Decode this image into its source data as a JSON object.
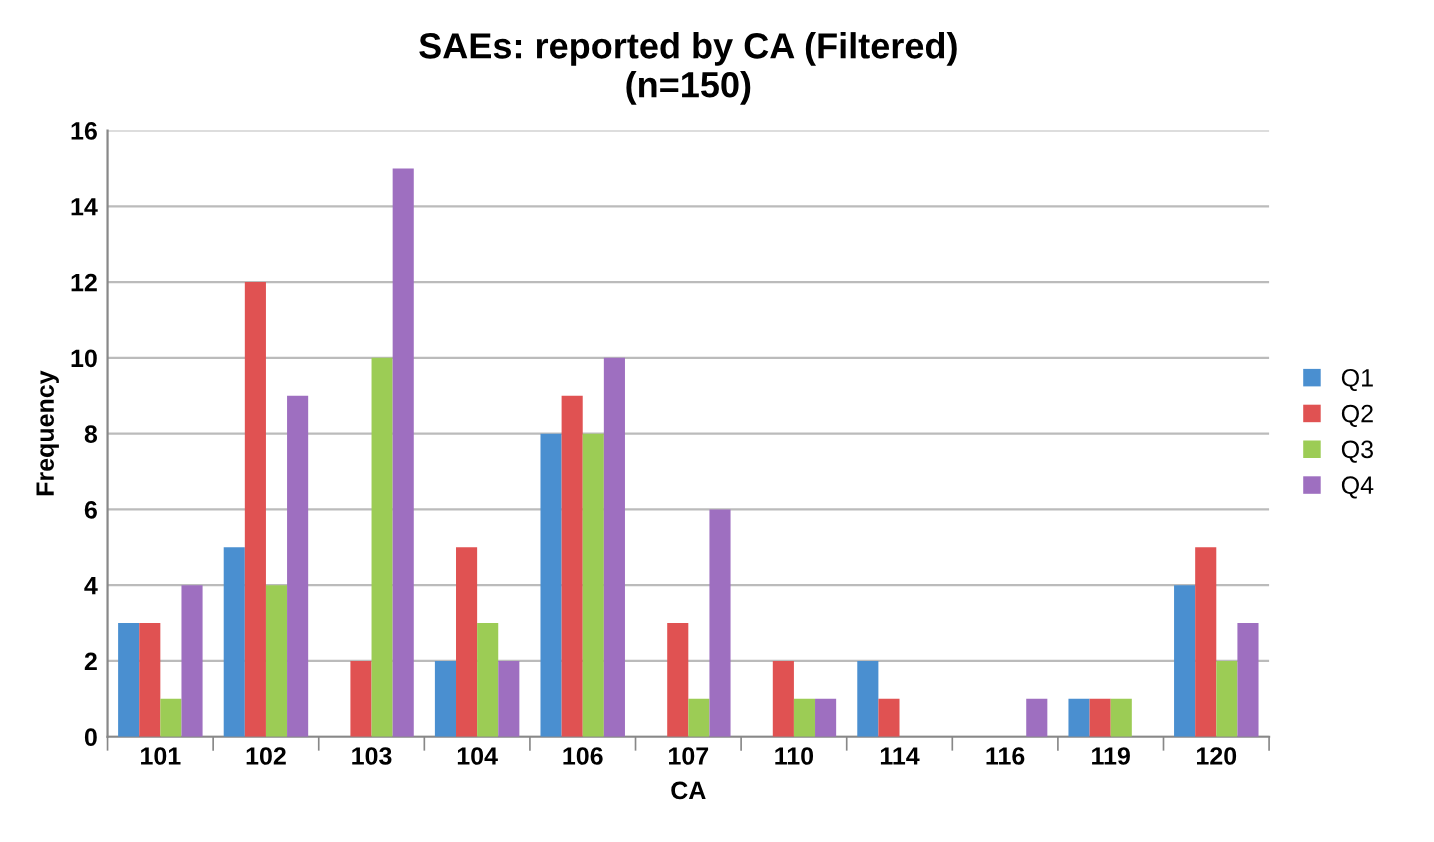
{
  "chart_data": {
    "type": "bar",
    "title": "SAEs: reported by CA (Filtered)\n(n=150)",
    "xlabel": "CA",
    "ylabel": "Frequency",
    "categories": [
      "101",
      "102",
      "103",
      "104",
      "106",
      "107",
      "110",
      "114",
      "116",
      "119",
      "120"
    ],
    "series": [
      {
        "name": "Q1",
        "color": "#4a8fd0",
        "values": [
          3,
          5,
          0,
          2,
          8,
          0,
          0,
          2,
          0,
          1,
          4
        ]
      },
      {
        "name": "Q2",
        "color": "#e05252",
        "values": [
          3,
          12,
          2,
          5,
          9,
          3,
          2,
          1,
          0,
          1,
          5
        ]
      },
      {
        "name": "Q3",
        "color": "#9ccc55",
        "values": [
          1,
          4,
          10,
          3,
          8,
          1,
          1,
          0,
          0,
          1,
          2
        ]
      },
      {
        "name": "Q4",
        "color": "#9e6fc0",
        "values": [
          4,
          9,
          15,
          2,
          10,
          6,
          1,
          0,
          1,
          0,
          3
        ]
      }
    ],
    "ylim": [
      0,
      16
    ],
    "yticks": [
      0,
      2,
      4,
      6,
      8,
      10,
      12,
      14,
      16
    ],
    "grid": "y",
    "legend": "right"
  }
}
